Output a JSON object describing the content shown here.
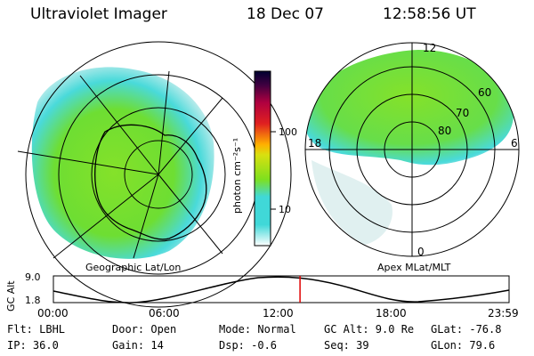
{
  "header": {
    "title": "Ultraviolet Imager",
    "date": "18 Dec 07",
    "time": "12:58:56 UT"
  },
  "left_panel": {
    "label": "Geographic Lat/Lon"
  },
  "right_panel": {
    "label": "Apex MLat/MLT",
    "mlt_labels": {
      "top": "12",
      "left": "18",
      "right": "6",
      "bottom": "0"
    },
    "mlat_labels": [
      "60",
      "70",
      "80"
    ]
  },
  "colorbar": {
    "unit": "photon cm⁻²s⁻¹",
    "ticks": [
      "100",
      "10"
    ]
  },
  "altitude_plot": {
    "ylabel": "GC Alt",
    "yticks": [
      "9.0",
      "1.8"
    ],
    "xticks": [
      "00:00",
      "06:00",
      "12:00",
      "18:00",
      "23:59"
    ],
    "marker_hour": 12.98
  },
  "info": {
    "row1": [
      "Flt: LBHL",
      "Door: Open",
      "Mode: Normal",
      "GC Alt: 9.0 Re",
      "GLat: -76.8"
    ],
    "row2": [
      "IP: 36.0",
      "Gain: 14",
      "Dsp:    -0.6",
      "Seq: 39",
      "GLon: 79.6"
    ]
  },
  "colors": {
    "marker": "#e00000",
    "aurora_low": "#d8ecec",
    "aurora_mid": "#40d8d8",
    "aurora_high": "#7ee01e"
  }
}
